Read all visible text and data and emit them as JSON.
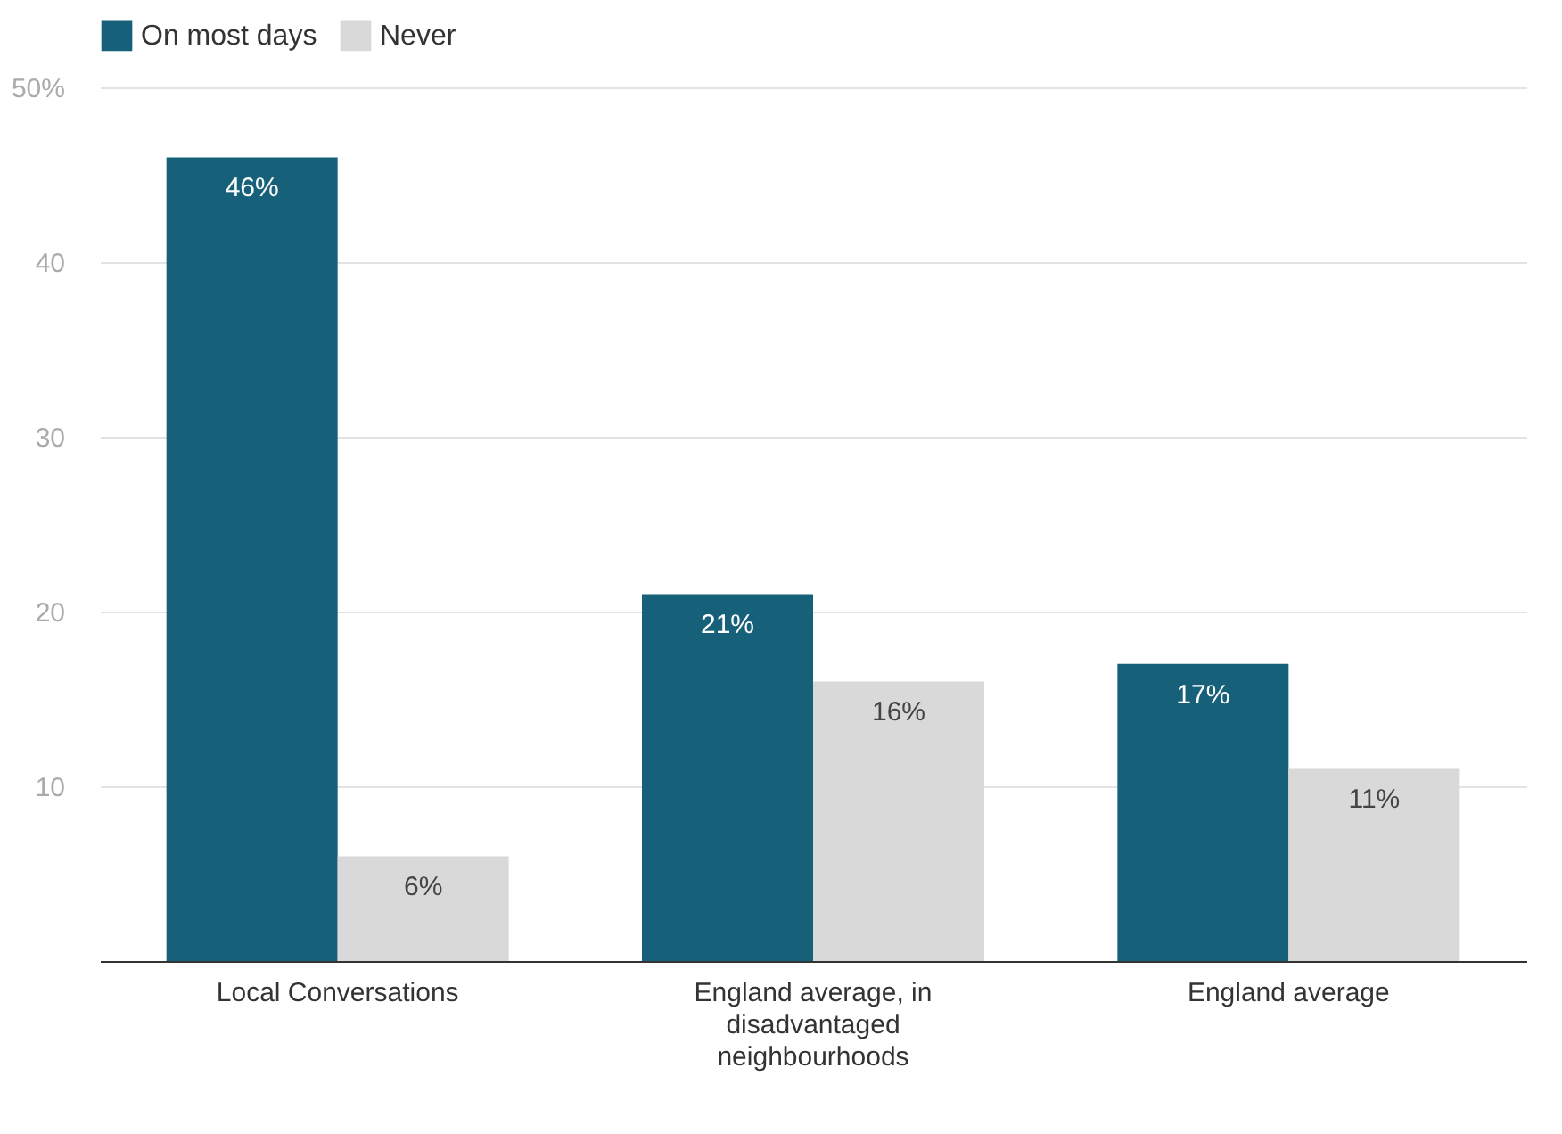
{
  "chart_data": {
    "type": "bar",
    "categories": [
      "Local Conversations",
      "England average, in disadvantaged neighbourhoods",
      "England average"
    ],
    "series": [
      {
        "name": "On most days",
        "color": "#17607a",
        "values": [
          46,
          21,
          17
        ],
        "value_labels": [
          "46%",
          "21%",
          "17%"
        ]
      },
      {
        "name": "Never",
        "color": "#d9d9d9",
        "values": [
          6,
          16,
          11
        ],
        "value_labels": [
          "6%",
          "16%",
          "11%"
        ]
      }
    ],
    "ylim": [
      0,
      50
    ],
    "yticks": [
      10,
      20,
      30,
      40,
      {
        "value": 50,
        "label": "50%"
      }
    ],
    "grid": "y",
    "legend": "top left"
  }
}
